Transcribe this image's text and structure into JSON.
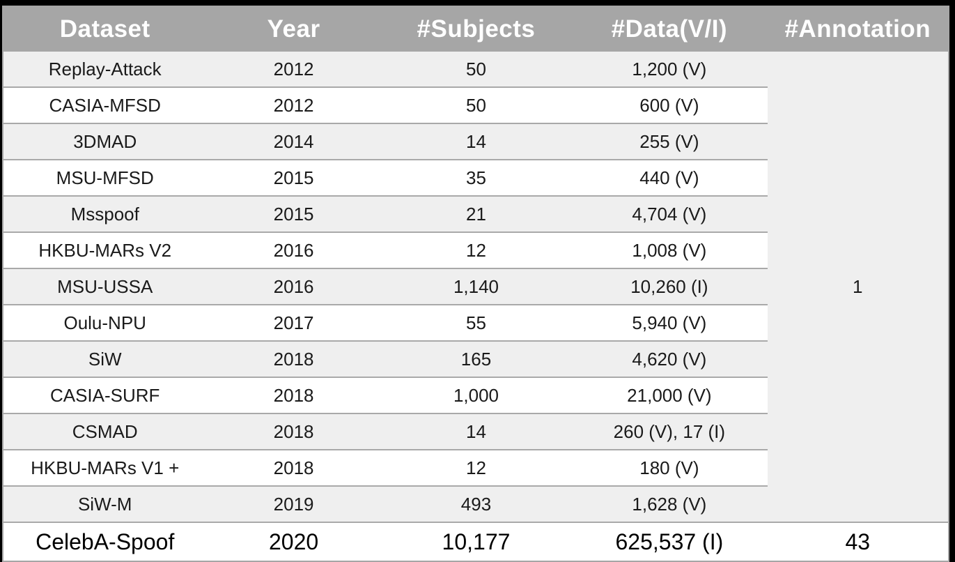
{
  "title": "Face anti-spoofing dataset comparison table",
  "colors": {
    "header_bg": "#a6a6a6",
    "header_text": "#ffffff",
    "row_stripe_bg": "#efefef",
    "row_bg": "#ffffff",
    "separator": "#a9a9a9",
    "frame_bg": "#000000",
    "body_text": "#1a1a1a"
  },
  "table": {
    "headers": [
      "Dataset",
      "Year",
      "#Subjects",
      "#Data(V/I)",
      "#Annotation"
    ],
    "rows": [
      {
        "dataset": "Replay-Attack",
        "year": "2012",
        "subjects": "50",
        "data": "1,200 (V)"
      },
      {
        "dataset": "CASIA-MFSD",
        "year": "2012",
        "subjects": "50",
        "data": "600 (V)"
      },
      {
        "dataset": "3DMAD",
        "year": "2014",
        "subjects": "14",
        "data": "255 (V)"
      },
      {
        "dataset": "MSU-MFSD",
        "year": "2015",
        "subjects": "35",
        "data": "440 (V)"
      },
      {
        "dataset": "Msspoof",
        "year": "2015",
        "subjects": "21",
        "data": "4,704 (V)"
      },
      {
        "dataset": "HKBU-MARs V2",
        "year": "2016",
        "subjects": "12",
        "data": "1,008 (V)"
      },
      {
        "dataset": "MSU-USSA",
        "year": "2016",
        "subjects": "1,140",
        "data": "10,260 (I)"
      },
      {
        "dataset": "Oulu-NPU",
        "year": "2017",
        "subjects": "55",
        "data": "5,940 (V)"
      },
      {
        "dataset": "SiW",
        "year": "2018",
        "subjects": "165",
        "data": "4,620 (V)"
      },
      {
        "dataset": "CASIA-SURF",
        "year": "2018",
        "subjects": "1,000",
        "data": "21,000 (V)"
      },
      {
        "dataset": "CSMAD",
        "year": "2018",
        "subjects": "14",
        "data": "260 (V), 17 (I)"
      },
      {
        "dataset": "HKBU-MARs V1 +",
        "year": "2018",
        "subjects": "12",
        "data": "180 (V)"
      },
      {
        "dataset": "SiW-M",
        "year": "2019",
        "subjects": "493",
        "data": "1,628 (V)"
      }
    ],
    "merged_annotation_value": "1",
    "highlight_row": {
      "dataset": "CelebA-Spoof",
      "year": "2020",
      "subjects": "10,177",
      "data": "625,537 (I)",
      "annotation": "43"
    }
  }
}
